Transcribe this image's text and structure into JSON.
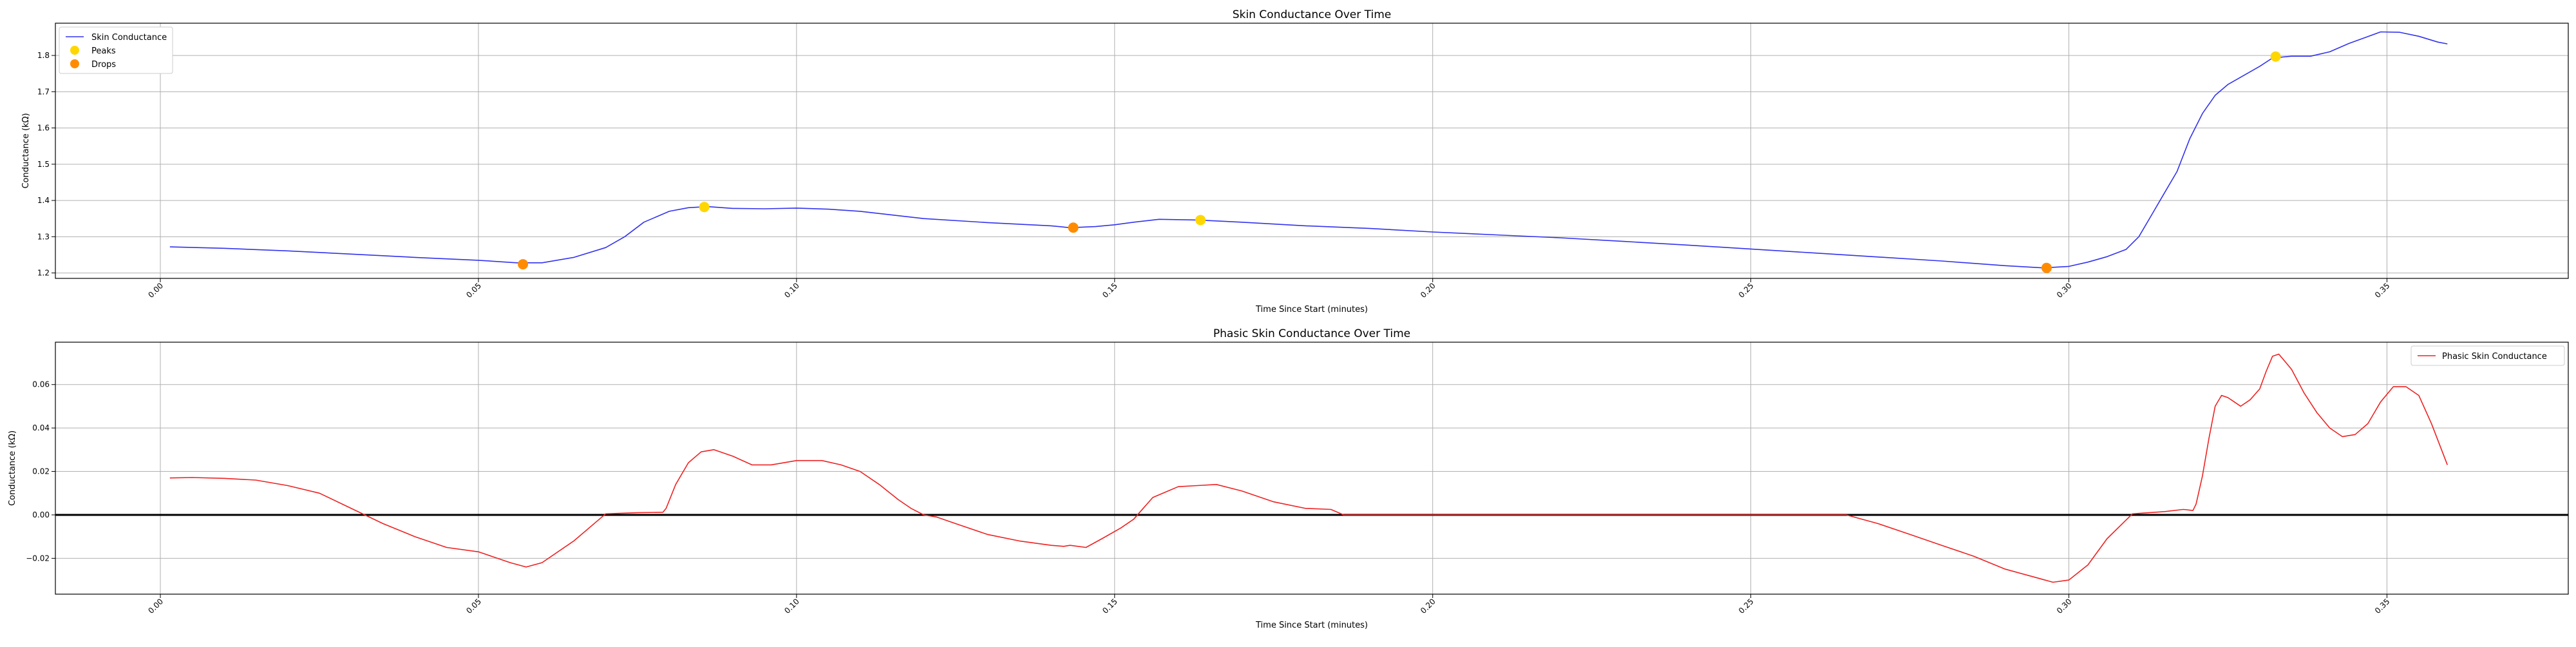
{
  "chart_data": [
    {
      "type": "line",
      "title": "Skin Conductance Over Time",
      "xlabel": "Time Since Start (minutes)",
      "ylabel": "Conductance (kΩ)",
      "xlim": [
        -0.0165,
        0.3785
      ],
      "ylim": [
        1.185,
        1.889
      ],
      "xticks": [
        "0.00",
        "0.05",
        "0.10",
        "0.15",
        "0.20",
        "0.25",
        "0.30",
        "0.35"
      ],
      "xtick_values": [
        0,
        0.05,
        0.1,
        0.15,
        0.2,
        0.25,
        0.3,
        0.35
      ],
      "yticks": [
        "1.2",
        "1.3",
        "1.4",
        "1.5",
        "1.6",
        "1.7",
        "1.8"
      ],
      "ytick_values": [
        1.2,
        1.3,
        1.4,
        1.5,
        1.6,
        1.7,
        1.8
      ],
      "grid": true,
      "legend_position": "upper left",
      "series": [
        {
          "name": "Skin Conductance",
          "kind": "line",
          "color": "#3333ee",
          "x": [
            0.0015,
            0.01,
            0.02,
            0.03,
            0.04,
            0.05,
            0.056,
            0.06,
            0.065,
            0.07,
            0.073,
            0.076,
            0.08,
            0.083,
            0.086,
            0.09,
            0.095,
            0.1,
            0.105,
            0.11,
            0.115,
            0.12,
            0.13,
            0.14,
            0.143,
            0.147,
            0.15,
            0.153,
            0.157,
            0.163,
            0.17,
            0.18,
            0.19,
            0.2,
            0.21,
            0.22,
            0.23,
            0.24,
            0.25,
            0.26,
            0.27,
            0.28,
            0.29,
            0.296,
            0.3,
            0.303,
            0.306,
            0.309,
            0.311,
            0.313,
            0.315,
            0.317,
            0.319,
            0.321,
            0.323,
            0.325,
            0.327,
            0.33,
            0.332,
            0.335,
            0.338,
            0.341,
            0.344,
            0.347,
            0.349,
            0.352,
            0.355,
            0.358,
            0.3595
          ],
          "y": [
            1.272,
            1.268,
            1.261,
            1.252,
            1.243,
            1.235,
            1.228,
            1.228,
            1.243,
            1.27,
            1.3,
            1.34,
            1.37,
            1.38,
            1.383,
            1.378,
            1.377,
            1.379,
            1.376,
            1.37,
            1.36,
            1.35,
            1.339,
            1.33,
            1.325,
            1.328,
            1.333,
            1.34,
            1.348,
            1.346,
            1.34,
            1.33,
            1.323,
            1.313,
            1.305,
            1.297,
            1.287,
            1.277,
            1.266,
            1.255,
            1.244,
            1.233,
            1.22,
            1.214,
            1.218,
            1.23,
            1.245,
            1.265,
            1.3,
            1.36,
            1.42,
            1.48,
            1.57,
            1.64,
            1.69,
            1.72,
            1.74,
            1.77,
            1.793,
            1.798,
            1.798,
            1.81,
            1.833,
            1.852,
            1.865,
            1.864,
            1.853,
            1.837,
            1.832
          ]
        },
        {
          "name": "Peaks",
          "kind": "scatter",
          "color": "#ffd700",
          "x": [
            0.0855,
            0.1635,
            0.3325
          ],
          "y": [
            1.382,
            1.346,
            1.797
          ]
        },
        {
          "name": "Drops",
          "kind": "scatter",
          "color": "#ff8c00",
          "x": [
            0.057,
            0.1435,
            0.2965
          ],
          "y": [
            1.224,
            1.325,
            1.214
          ]
        }
      ]
    },
    {
      "type": "line",
      "title": "Phasic Skin Conductance Over Time",
      "xlabel": "Time Since Start (minutes)",
      "ylabel": "Conductance (kΩ)",
      "xlim": [
        -0.0165,
        0.3785
      ],
      "ylim": [
        -0.0365,
        0.0795
      ],
      "xticks": [
        "0.00",
        "0.05",
        "0.10",
        "0.15",
        "0.20",
        "0.25",
        "0.30",
        "0.35"
      ],
      "xtick_values": [
        0,
        0.05,
        0.1,
        0.15,
        0.2,
        0.25,
        0.3,
        0.35
      ],
      "yticks": [
        "−0.02",
        "0.00",
        "0.02",
        "0.04",
        "0.06"
      ],
      "ytick_values": [
        -0.02,
        0.0,
        0.02,
        0.04,
        0.06
      ],
      "grid": true,
      "legend_position": "upper right",
      "hline": 0,
      "series": [
        {
          "name": "Phasic Skin Conductance",
          "kind": "line",
          "color": "#ee2222",
          "x": [
            0.0015,
            0.005,
            0.01,
            0.015,
            0.02,
            0.025,
            0.03,
            0.035,
            0.04,
            0.045,
            0.05,
            0.055,
            0.0575,
            0.06,
            0.065,
            0.07,
            0.075,
            0.079,
            0.0795,
            0.081,
            0.083,
            0.085,
            0.087,
            0.09,
            0.093,
            0.096,
            0.1,
            0.104,
            0.107,
            0.11,
            0.113,
            0.116,
            0.118,
            0.12,
            0.122,
            0.125,
            0.13,
            0.135,
            0.14,
            0.142,
            0.143,
            0.1455,
            0.148,
            0.151,
            0.153,
            0.156,
            0.16,
            0.163,
            0.166,
            0.17,
            0.175,
            0.18,
            0.184,
            0.186,
            0.2,
            0.25,
            0.265,
            0.27,
            0.275,
            0.28,
            0.285,
            0.29,
            0.295,
            0.2975,
            0.3,
            0.303,
            0.306,
            0.31,
            0.315,
            0.318,
            0.3195,
            0.32,
            0.321,
            0.322,
            0.323,
            0.324,
            0.325,
            0.326,
            0.327,
            0.3285,
            0.33,
            0.331,
            0.332,
            0.333,
            0.335,
            0.337,
            0.339,
            0.341,
            0.343,
            0.345,
            0.347,
            0.349,
            0.351,
            0.353,
            0.355,
            0.357,
            0.3595
          ],
          "y": [
            0.017,
            0.0172,
            0.0168,
            0.016,
            0.0135,
            0.01,
            0.003,
            -0.004,
            -0.01,
            -0.015,
            -0.017,
            -0.022,
            -0.024,
            -0.022,
            -0.012,
            0.0005,
            0.001,
            0.0012,
            0.003,
            0.014,
            0.024,
            0.029,
            0.03,
            0.027,
            0.023,
            0.023,
            0.025,
            0.025,
            0.023,
            0.02,
            0.014,
            0.007,
            0.003,
            0.0,
            -0.001,
            -0.004,
            -0.009,
            -0.012,
            -0.014,
            -0.0145,
            -0.014,
            -0.015,
            -0.011,
            -0.006,
            -0.002,
            0.008,
            0.013,
            0.0135,
            0.014,
            0.011,
            0.006,
            0.003,
            0.0025,
            0.0,
            0.0,
            0.0,
            0.0,
            -0.004,
            -0.009,
            -0.014,
            -0.019,
            -0.025,
            -0.029,
            -0.031,
            -0.03,
            -0.023,
            -0.011,
            0.0005,
            0.0015,
            0.0025,
            0.002,
            0.005,
            0.018,
            0.035,
            0.05,
            0.055,
            0.054,
            0.052,
            0.05,
            0.053,
            0.058,
            0.066,
            0.073,
            0.074,
            0.067,
            0.056,
            0.047,
            0.04,
            0.036,
            0.037,
            0.042,
            0.052,
            0.059,
            0.059,
            0.055,
            0.042,
            0.023
          ]
        }
      ]
    }
  ]
}
